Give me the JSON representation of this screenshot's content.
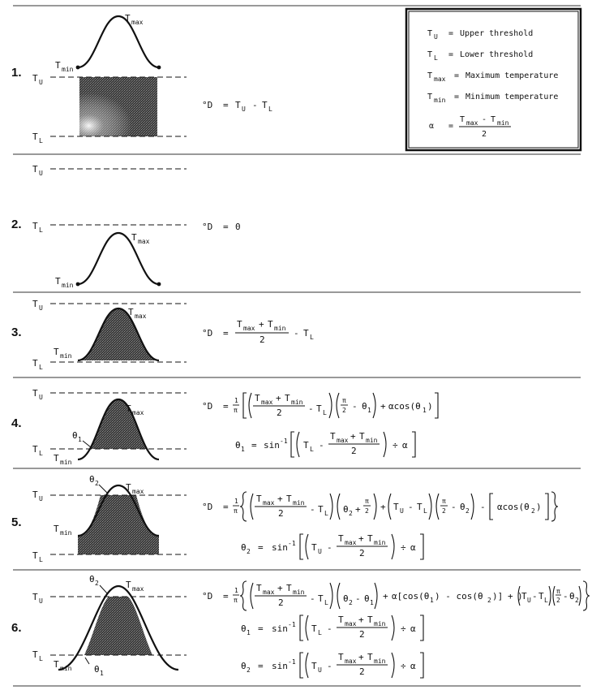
{
  "symbols": {
    "T": "T",
    "U": "U",
    "L": "L",
    "max": "max",
    "min": "min",
    "theta": "θ",
    "one": "1",
    "two": "2",
    "alpha": "α",
    "pi": "π",
    "deg_D": "°D",
    "eq": "=",
    "sin": "sin",
    "cos": "cos",
    "neg1": "-1"
  },
  "legend": {
    "rows": [
      {
        "sym_main": "T",
        "sym_sub": "U",
        "definition": "Upper threshold"
      },
      {
        "sym_main": "T",
        "sym_sub": "L",
        "definition": "Lower threshold"
      },
      {
        "sym_main": "T",
        "sym_sub": "max",
        "definition": "Maximum temperature"
      },
      {
        "sym_main": "T",
        "sym_sub": "min",
        "definition": "Minimum temperature"
      }
    ],
    "alpha_sym": "α",
    "alpha_denominator": "2"
  },
  "cases": [
    {
      "number": "1.",
      "result": "T_U - T_L"
    },
    {
      "number": "2.",
      "result": "0"
    },
    {
      "number": "3.",
      "result": "(T_max + T_min)/2 - T_L"
    },
    {
      "number": "4.",
      "result": "formula"
    },
    {
      "number": "5.",
      "result": "formula"
    },
    {
      "number": "6.",
      "result": "formula"
    }
  ],
  "formula_text": {
    "sum_maxmin": "max + T",
    "zero": "0",
    "two": "2",
    "one_over_pi": "1",
    "acos1": "αcos(θ",
    "acos2": "αcos(θ",
    "cos_diff_a": "α[cos(θ",
    "cos_diff_b": ") - cos(θ",
    "cos_diff_c": ")]",
    "plus": "+",
    "minus": "-",
    "div": "÷",
    "pi": "π",
    "close_paren": ")"
  }
}
